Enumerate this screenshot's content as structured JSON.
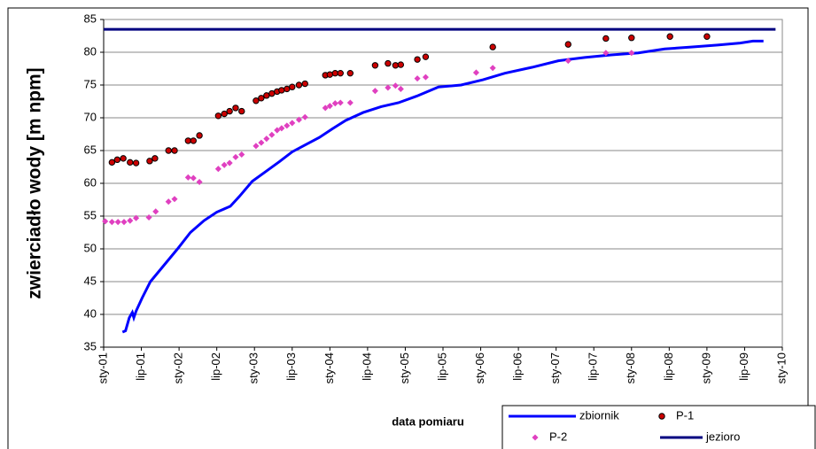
{
  "chart_data": {
    "type": "scatter",
    "xlabel": "data pomiaru",
    "ylabel": "zwierciadło wody [m npm]",
    "xlim": [
      2001,
      2010
    ],
    "xticks": [
      {
        "value": 2001,
        "label": "sty-01"
      },
      {
        "value": 2001.5,
        "label": "lip-01"
      },
      {
        "value": 2002,
        "label": "sty-02"
      },
      {
        "value": 2002.5,
        "label": "lip-02"
      },
      {
        "value": 2003,
        "label": "sty-03"
      },
      {
        "value": 2003.5,
        "label": "lip-03"
      },
      {
        "value": 2004,
        "label": "sty-04"
      },
      {
        "value": 2004.5,
        "label": "lip-04"
      },
      {
        "value": 2005,
        "label": "sty-05"
      },
      {
        "value": 2005.5,
        "label": "lip-05"
      },
      {
        "value": 2006,
        "label": "sty-06"
      },
      {
        "value": 2006.5,
        "label": "lip-06"
      },
      {
        "value": 2007,
        "label": "sty-07"
      },
      {
        "value": 2007.5,
        "label": "lip-07"
      },
      {
        "value": 2008,
        "label": "sty-08"
      },
      {
        "value": 2008.5,
        "label": "lip-08"
      },
      {
        "value": 2009,
        "label": "sty-09"
      },
      {
        "value": 2009.5,
        "label": "lip-09"
      },
      {
        "value": 2010,
        "label": "sty-10"
      }
    ],
    "ylim": [
      35,
      85
    ],
    "yticks": [
      35,
      40,
      45,
      50,
      55,
      60,
      65,
      70,
      75,
      80,
      85
    ],
    "grid": true,
    "legend": "lower right",
    "series": [
      {
        "name": "zbiornik",
        "color": "#0000ff",
        "mode": "line",
        "x": [
          2001.25,
          2001.29,
          2001.34,
          2001.38,
          2001.4,
          2001.43,
          2001.51,
          2001.62,
          2001.8,
          2001.98,
          2002.15,
          2002.33,
          2002.5,
          2002.68,
          2002.8,
          2002.97,
          2003.15,
          2003.33,
          2003.5,
          2003.68,
          2003.86,
          2004.03,
          2004.21,
          2004.44,
          2004.68,
          2004.91,
          2005.15,
          2005.44,
          2005.74,
          2006.03,
          2006.32,
          2006.68,
          2007.03,
          2007.38,
          2007.73,
          2008.09,
          2008.44,
          2008.79,
          2009.14,
          2009.44,
          2009.61,
          2009.75
        ],
        "values": [
          37.3,
          37.5,
          39.5,
          40.3,
          39.5,
          40.5,
          42.5,
          45,
          47.5,
          50,
          52.5,
          54.3,
          55.6,
          56.5,
          58,
          60.3,
          61.8,
          63.3,
          64.8,
          65.9,
          67,
          68.3,
          69.6,
          70.8,
          71.7,
          72.3,
          73.3,
          74.7,
          75,
          75.8,
          76.8,
          77.7,
          78.7,
          79.2,
          79.6,
          79.9,
          80.5,
          80.8,
          81.1,
          81.4,
          81.7,
          81.7
        ]
      },
      {
        "name": "P-1",
        "color": "#cc0000",
        "mode": "markers",
        "x": [
          2001.11,
          2001.18,
          2001.26,
          2001.35,
          2001.43,
          2001.61,
          2001.68,
          2001.86,
          2001.94,
          2002.12,
          2002.19,
          2002.27,
          2002.52,
          2002.6,
          2002.67,
          2002.75,
          2002.83,
          2003.02,
          2003.09,
          2003.16,
          2003.23,
          2003.3,
          2003.36,
          2003.43,
          2003.5,
          2003.59,
          2003.67,
          2003.94,
          2004.0,
          2004.07,
          2004.14,
          2004.27,
          2004.6,
          2004.77,
          2004.87,
          2004.94,
          2005.16,
          2005.27,
          2006.16,
          2007.16,
          2007.66,
          2008.0,
          2008.51,
          2009.0
        ],
        "values": [
          63.2,
          63.6,
          63.8,
          63.2,
          63.1,
          63.4,
          63.8,
          65,
          65,
          66.5,
          66.5,
          67.3,
          70.3,
          70.6,
          71,
          71.5,
          71,
          72.6,
          73,
          73.4,
          73.7,
          74,
          74.2,
          74.4,
          74.7,
          75,
          75.2,
          76.5,
          76.6,
          76.8,
          76.8,
          76.8,
          78,
          78.3,
          78,
          78.1,
          78.9,
          79.3,
          80.8,
          81.2,
          82.1,
          82.2,
          82.4,
          82.4
        ]
      },
      {
        "name": "P-2",
        "color": "#e040c0",
        "mode": "markers",
        "x": [
          2001.02,
          2001.11,
          2001.19,
          2001.27,
          2001.35,
          2001.43,
          2001.6,
          2001.69,
          2001.86,
          2001.94,
          2002.12,
          2002.19,
          2002.27,
          2002.52,
          2002.6,
          2002.67,
          2002.75,
          2002.83,
          2003.02,
          2003.09,
          2003.16,
          2003.23,
          2003.3,
          2003.36,
          2003.43,
          2003.5,
          2003.59,
          2003.67,
          2003.94,
          2004.0,
          2004.07,
          2004.14,
          2004.27,
          2004.6,
          2004.77,
          2004.87,
          2004.94,
          2005.16,
          2005.27,
          2005.94,
          2006.16,
          2007.16,
          2007.66,
          2008.0
        ],
        "values": [
          54.2,
          54.1,
          54.1,
          54.1,
          54.3,
          54.7,
          54.8,
          55.7,
          57.2,
          57.6,
          60.9,
          60.8,
          60.2,
          62.2,
          62.8,
          63.1,
          64,
          64.4,
          65.7,
          66.2,
          66.8,
          67.4,
          68.1,
          68.4,
          68.8,
          69.2,
          69.7,
          70.1,
          71.5,
          71.8,
          72.2,
          72.3,
          72.3,
          74.1,
          74.6,
          74.9,
          74.4,
          76,
          76.2,
          76.9,
          77.6,
          78.7,
          79.9,
          79.9
        ]
      },
      {
        "name": "jezioro",
        "color": "#000080",
        "mode": "line",
        "x": [
          2001,
          2009.91
        ],
        "values": [
          83.5,
          83.5
        ]
      }
    ]
  }
}
